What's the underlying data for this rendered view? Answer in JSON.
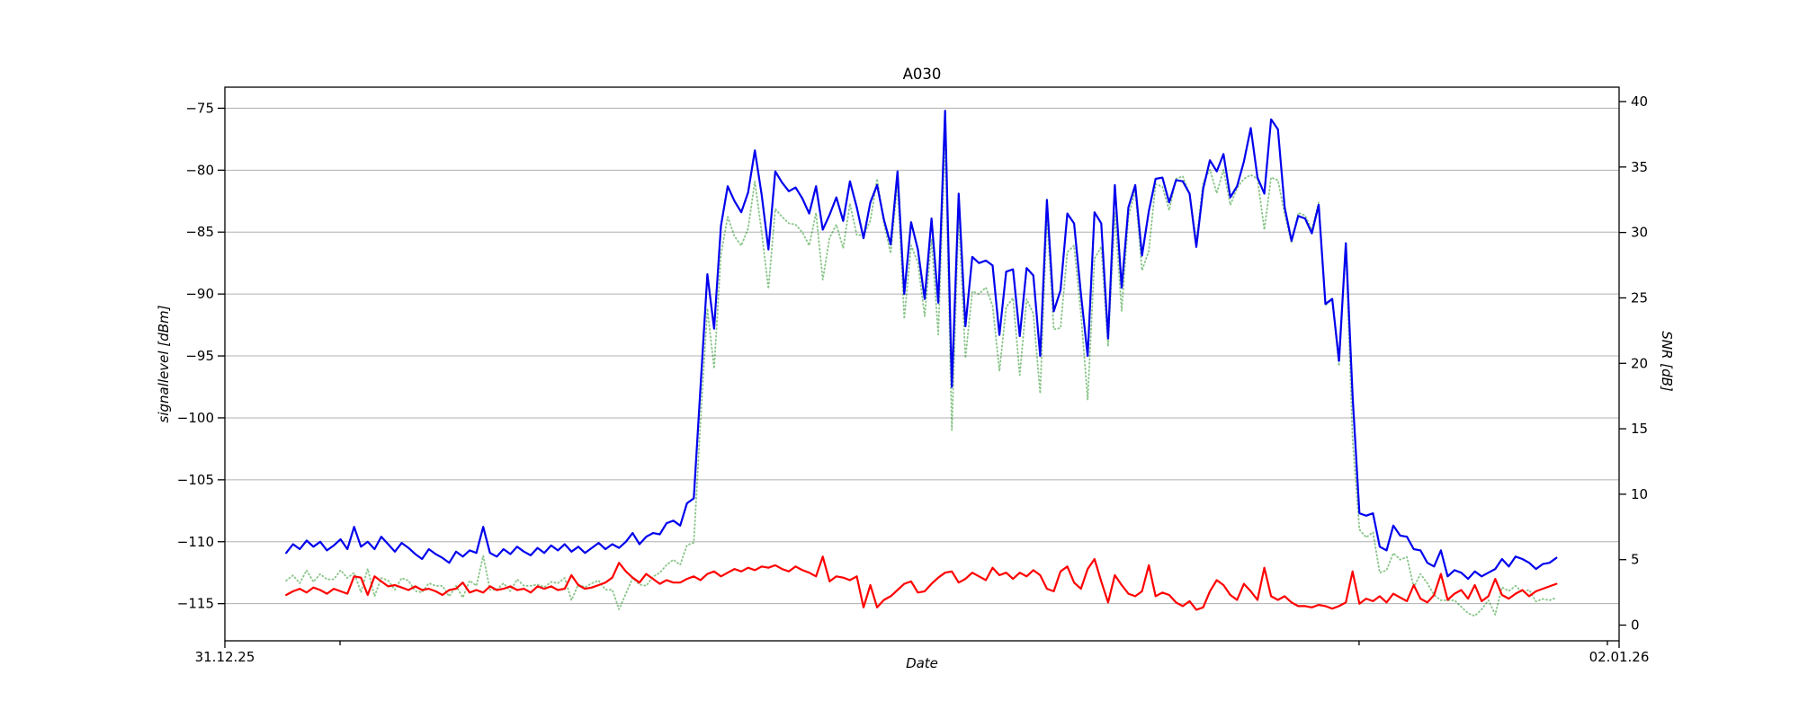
{
  "window": {
    "background": "#ffffff"
  },
  "chart_data": {
    "type": "line",
    "title": "A030",
    "xlabel": "Date",
    "ylabel_left": "signallevel [dBm]",
    "ylabel_right": "SNR [dB]",
    "grid": "horizontal-only",
    "grid_color": "#b0b0b0",
    "legend": "none",
    "ylim_left": [
      -118.0,
      -73.3
    ],
    "ylim_right": [
      -1.2,
      41.1
    ],
    "left_ticks": [
      -75,
      -80,
      -85,
      -90,
      -95,
      -100,
      -105,
      -110,
      -115
    ],
    "right_ticks": [
      40,
      35,
      30,
      25,
      20,
      15,
      10,
      5,
      0
    ],
    "x_ticks": [
      {
        "label": "31.12.25",
        "frac": 0.0,
        "major": true
      },
      {
        "frac": 0.0826,
        "major": false
      },
      {
        "frac": 0.8135,
        "major": false
      },
      {
        "frac": 0.9916,
        "major": false
      },
      {
        "label": "02.01.26",
        "frac": 1.0,
        "major": true
      }
    ],
    "colors": {
      "signal": "#0000ee",
      "noise": "#ff0000",
      "snr": "rgba(0,128,0,0.45)"
    },
    "series": [
      {
        "id": "signal-line",
        "axis": "left",
        "style": "solid",
        "color_key": "signal",
        "values": [
          -110.9,
          -110.2,
          -110.6,
          -109.9,
          -110.4,
          -110.0,
          -110.7,
          -110.3,
          -109.8,
          -110.6,
          -108.8,
          -110.4,
          -110.0,
          -110.6,
          -109.6,
          -110.2,
          -110.8,
          -110.1,
          -110.5,
          -111.0,
          -111.4,
          -110.6,
          -111.0,
          -111.3,
          -111.7,
          -110.8,
          -111.2,
          -110.7,
          -110.9,
          -108.8,
          -110.9,
          -111.2,
          -110.6,
          -111.0,
          -110.4,
          -110.8,
          -111.1,
          -110.5,
          -110.9,
          -110.3,
          -110.7,
          -110.2,
          -110.8,
          -110.4,
          -110.9,
          -110.5,
          -110.1,
          -110.6,
          -110.2,
          -110.5,
          -110.0,
          -109.3,
          -110.2,
          -109.6,
          -109.3,
          -109.4,
          -108.5,
          -108.3,
          -108.7,
          -106.9,
          -106.5,
          -97.5,
          -88.4,
          -92.8,
          -84.5,
          -81.3,
          -82.5,
          -83.4,
          -81.8,
          -78.4,
          -82.0,
          -86.4,
          -80.1,
          -81.0,
          -81.7,
          -81.4,
          -82.3,
          -83.5,
          -81.3,
          -84.8,
          -83.6,
          -82.2,
          -84.1,
          -80.9,
          -83.0,
          -85.5,
          -82.6,
          -81.2,
          -84.0,
          -86.0,
          -80.1,
          -90.0,
          -84.2,
          -86.4,
          -90.4,
          -83.9,
          -90.7,
          -75.2,
          -97.5,
          -81.9,
          -92.6,
          -87.0,
          -87.5,
          -87.3,
          -87.7,
          -93.3,
          -88.2,
          -88.0,
          -93.4,
          -87.9,
          -88.5,
          -95.0,
          -82.4,
          -91.4,
          -89.7,
          -83.5,
          -84.3,
          -90.0,
          -95.0,
          -83.4,
          -84.3,
          -93.6,
          -81.2,
          -89.5,
          -83.0,
          -81.2,
          -86.9,
          -83.3,
          -80.7,
          -80.6,
          -82.6,
          -80.8,
          -80.9,
          -81.9,
          -86.2,
          -81.5,
          -79.2,
          -80.1,
          -78.7,
          -82.2,
          -81.3,
          -79.3,
          -76.6,
          -80.6,
          -81.9,
          -75.9,
          -76.7,
          -83.0,
          -85.7,
          -83.7,
          -83.9,
          -85.1,
          -82.8,
          -90.8,
          -90.4,
          -95.4,
          -85.9,
          -98.2,
          -107.7,
          -107.9,
          -107.7,
          -110.4,
          -110.7,
          -108.7,
          -109.5,
          -109.6,
          -110.6,
          -110.7,
          -111.7,
          -112.0,
          -110.7,
          -112.8,
          -112.3,
          -112.5,
          -113.0,
          -112.4,
          -112.8,
          -112.5,
          -112.2,
          -111.4,
          -112.0,
          -111.2,
          -111.4,
          -111.7,
          -112.2,
          -111.8,
          -111.7,
          -111.3
        ]
      },
      {
        "id": "noise-line",
        "axis": "left",
        "style": "solid",
        "color_key": "noise",
        "values": [
          -114.3,
          -114.0,
          -113.8,
          -114.1,
          -113.7,
          -113.9,
          -114.2,
          -113.8,
          -114.0,
          -114.2,
          -112.8,
          -112.9,
          -114.3,
          -112.8,
          -113.2,
          -113.6,
          -113.5,
          -113.7,
          -113.9,
          -113.6,
          -113.9,
          -113.8,
          -114.0,
          -114.3,
          -113.9,
          -113.8,
          -113.3,
          -114.1,
          -113.9,
          -114.1,
          -113.6,
          -113.9,
          -113.8,
          -113.6,
          -113.9,
          -113.8,
          -114.1,
          -113.6,
          -113.8,
          -113.6,
          -113.9,
          -113.8,
          -112.7,
          -113.5,
          -113.8,
          -113.7,
          -113.5,
          -113.3,
          -112.9,
          -111.7,
          -112.4,
          -112.9,
          -113.3,
          -112.6,
          -113.0,
          -113.4,
          -113.1,
          -113.3,
          -113.3,
          -113.0,
          -112.8,
          -113.1,
          -112.6,
          -112.4,
          -112.8,
          -112.5,
          -112.2,
          -112.4,
          -112.1,
          -112.3,
          -112.0,
          -112.1,
          -111.9,
          -112.2,
          -112.4,
          -112.0,
          -112.3,
          -112.5,
          -112.8,
          -111.2,
          -113.2,
          -112.8,
          -112.9,
          -113.1,
          -112.8,
          -115.3,
          -113.5,
          -115.3,
          -114.7,
          -114.4,
          -113.9,
          -113.4,
          -113.2,
          -114.1,
          -114.0,
          -113.4,
          -112.9,
          -112.5,
          -112.4,
          -113.3,
          -113.0,
          -112.5,
          -112.8,
          -113.1,
          -112.1,
          -112.7,
          -112.5,
          -113.0,
          -112.5,
          -112.8,
          -112.3,
          -112.7,
          -113.8,
          -114.0,
          -112.4,
          -112.0,
          -113.3,
          -113.8,
          -112.2,
          -111.4,
          -113.2,
          -114.9,
          -112.7,
          -113.5,
          -114.2,
          -114.4,
          -114.0,
          -111.9,
          -114.4,
          -114.1,
          -114.3,
          -114.9,
          -115.2,
          -114.8,
          -115.5,
          -115.3,
          -114.0,
          -113.1,
          -113.5,
          -114.3,
          -114.7,
          -113.4,
          -114.0,
          -114.7,
          -112.1,
          -114.4,
          -114.7,
          -114.4,
          -114.9,
          -115.2,
          -115.2,
          -115.3,
          -115.1,
          -115.2,
          -115.4,
          -115.2,
          -114.9,
          -112.4,
          -115.0,
          -114.6,
          -114.8,
          -114.4,
          -114.9,
          -114.2,
          -114.5,
          -114.8,
          -113.5,
          -114.6,
          -114.9,
          -114.3,
          -112.6,
          -114.7,
          -114.2,
          -113.9,
          -114.6,
          -113.5,
          -114.8,
          -114.4,
          -113.0,
          -114.3,
          -114.6,
          -114.2,
          -113.9,
          -114.4,
          -114.0,
          -113.8,
          -113.6,
          -113.4
        ]
      },
      {
        "id": "snr-line",
        "axis": "right",
        "style": "dotted",
        "color_key": "snr",
        "values": [
          3.4,
          3.8,
          3.2,
          4.2,
          3.3,
          3.9,
          3.5,
          3.5,
          4.2,
          3.6,
          4.0,
          2.5,
          4.3,
          2.2,
          3.6,
          3.4,
          2.7,
          3.6,
          3.4,
          2.6,
          2.5,
          3.2,
          3.0,
          3.0,
          2.2,
          3.0,
          2.1,
          3.4,
          3.0,
          5.3,
          2.7,
          2.7,
          3.2,
          2.6,
          3.5,
          3.0,
          3.0,
          3.1,
          2.9,
          3.3,
          3.2,
          3.6,
          1.9,
          3.1,
          2.9,
          3.2,
          3.4,
          2.7,
          2.7,
          1.2,
          2.4,
          3.6,
          3.1,
          3.0,
          3.7,
          4.0,
          4.6,
          5.0,
          4.6,
          6.1,
          6.3,
          15.6,
          24.2,
          19.6,
          28.3,
          31.2,
          29.7,
          29.0,
          30.3,
          33.9,
          30.0,
          25.7,
          31.8,
          31.2,
          30.7,
          30.6,
          30.0,
          29.0,
          31.5,
          26.4,
          29.6,
          30.6,
          28.8,
          32.2,
          29.8,
          29.8,
          30.9,
          34.1,
          30.7,
          28.4,
          33.8,
          23.4,
          29.0,
          27.7,
          23.6,
          29.5,
          22.2,
          37.3,
          14.9,
          31.4,
          20.4,
          25.5,
          25.3,
          25.8,
          24.4,
          19.4,
          24.3,
          25.0,
          19.1,
          24.9,
          23.8,
          17.7,
          31.4,
          22.6,
          22.7,
          28.5,
          29.0,
          23.8,
          17.2,
          28.0,
          28.9,
          21.3,
          31.5,
          24.0,
          31.2,
          33.2,
          27.1,
          28.6,
          33.7,
          33.5,
          31.7,
          34.1,
          34.3,
          32.9,
          29.3,
          33.8,
          34.8,
          33.0,
          34.8,
          32.1,
          33.4,
          34.1,
          34.4,
          34.1,
          30.2,
          34.2,
          34.0,
          31.4,
          29.2,
          31.5,
          31.3,
          30.2,
          32.3,
          24.4,
          25.0,
          19.8,
          29.0,
          14.2,
          7.3,
          6.7,
          7.1,
          4.0,
          4.2,
          5.5,
          5.0,
          5.2,
          2.9,
          3.9,
          3.2,
          2.3,
          1.9,
          1.9,
          1.9,
          1.4,
          0.9,
          0.7,
          1.2,
          1.9,
          0.8,
          2.9,
          2.6,
          3.0,
          2.5,
          2.7,
          1.8,
          2.0,
          1.9,
          2.1
        ]
      }
    ]
  }
}
